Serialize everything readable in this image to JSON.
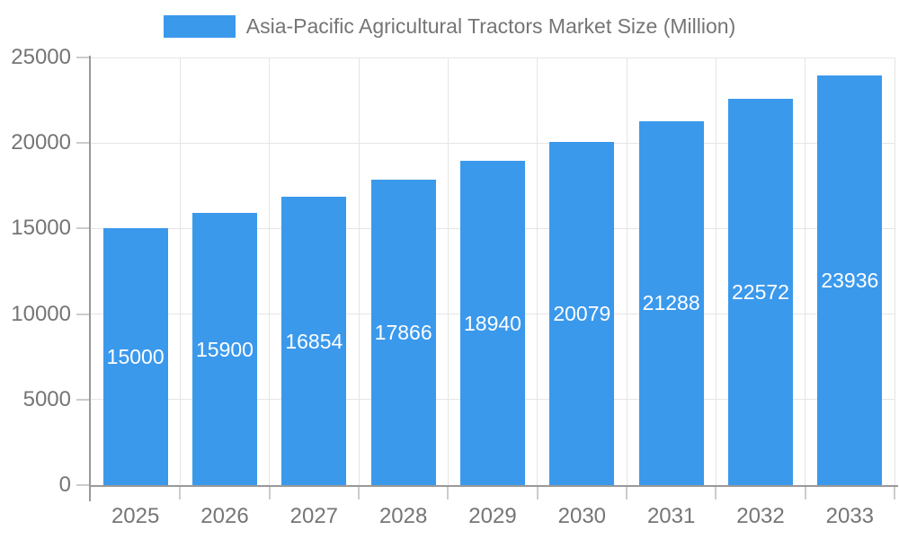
{
  "legend": {
    "label": "Asia-Pacific Agricultural Tractors Market Size (Million)"
  },
  "chart_data": {
    "type": "bar",
    "title": "Asia-Pacific Agricultural Tractors Market Size (Million)",
    "categories": [
      "2025",
      "2026",
      "2027",
      "2028",
      "2029",
      "2030",
      "2031",
      "2032",
      "2033"
    ],
    "values": [
      15000,
      15900,
      16854,
      17866,
      18940,
      20079,
      21288,
      22572,
      23936
    ],
    "y_ticks": [
      0,
      5000,
      10000,
      15000,
      20000,
      25000
    ],
    "ylim": [
      0,
      25000
    ],
    "xlabel": "",
    "ylabel": "",
    "grid": true,
    "legend_position": "top",
    "bar_color": "#3b99ec",
    "value_label_color": "#ffffff",
    "axis_color": "#999999",
    "tick_color": "#cccccc",
    "grid_color": "#e5e5e5",
    "text_color": "#757575"
  }
}
